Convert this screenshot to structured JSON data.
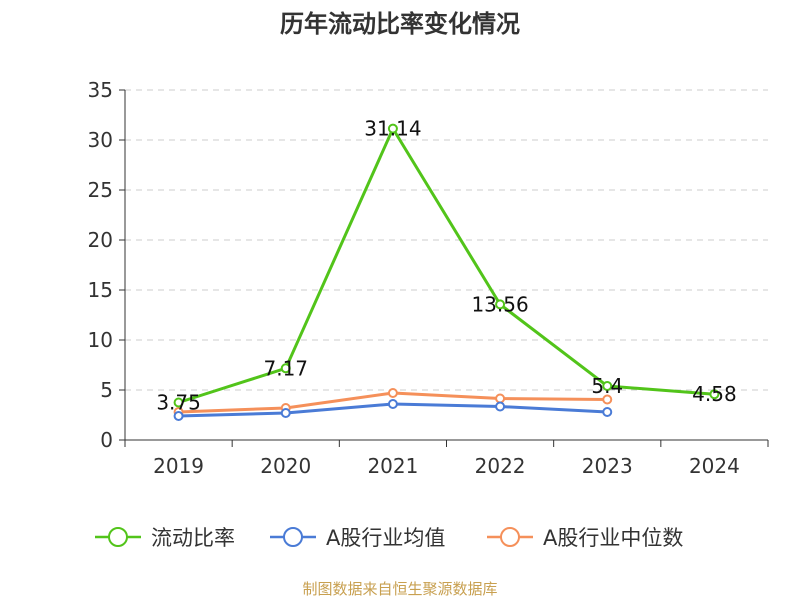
{
  "chart_data": {
    "type": "line",
    "title": "历年流动比率变化情况",
    "categories": [
      "2019",
      "2020",
      "2021",
      "2022",
      "2023",
      "2024"
    ],
    "ylim": [
      0,
      35
    ],
    "yticks": [
      0,
      5,
      10,
      15,
      20,
      25,
      30,
      35
    ],
    "grid": true,
    "legend_position": "bottom",
    "series": [
      {
        "name": "流动比率",
        "color": "#52c41a",
        "values": [
          3.75,
          7.17,
          31.14,
          13.56,
          5.4,
          4.58
        ],
        "labels": [
          "3.75",
          "7.17",
          "31.14",
          "13.56",
          "5.4",
          "4.58"
        ]
      },
      {
        "name": "A股行业均值",
        "color": "#4a7bd6",
        "values": [
          2.4,
          2.7,
          3.6,
          3.35,
          2.8,
          null
        ]
      },
      {
        "name": "A股行业中位数",
        "color": "#f5905a",
        "values": [
          2.8,
          3.2,
          4.7,
          4.15,
          4.05,
          null
        ]
      }
    ]
  },
  "source_note": "制图数据来自恒生聚源数据库"
}
